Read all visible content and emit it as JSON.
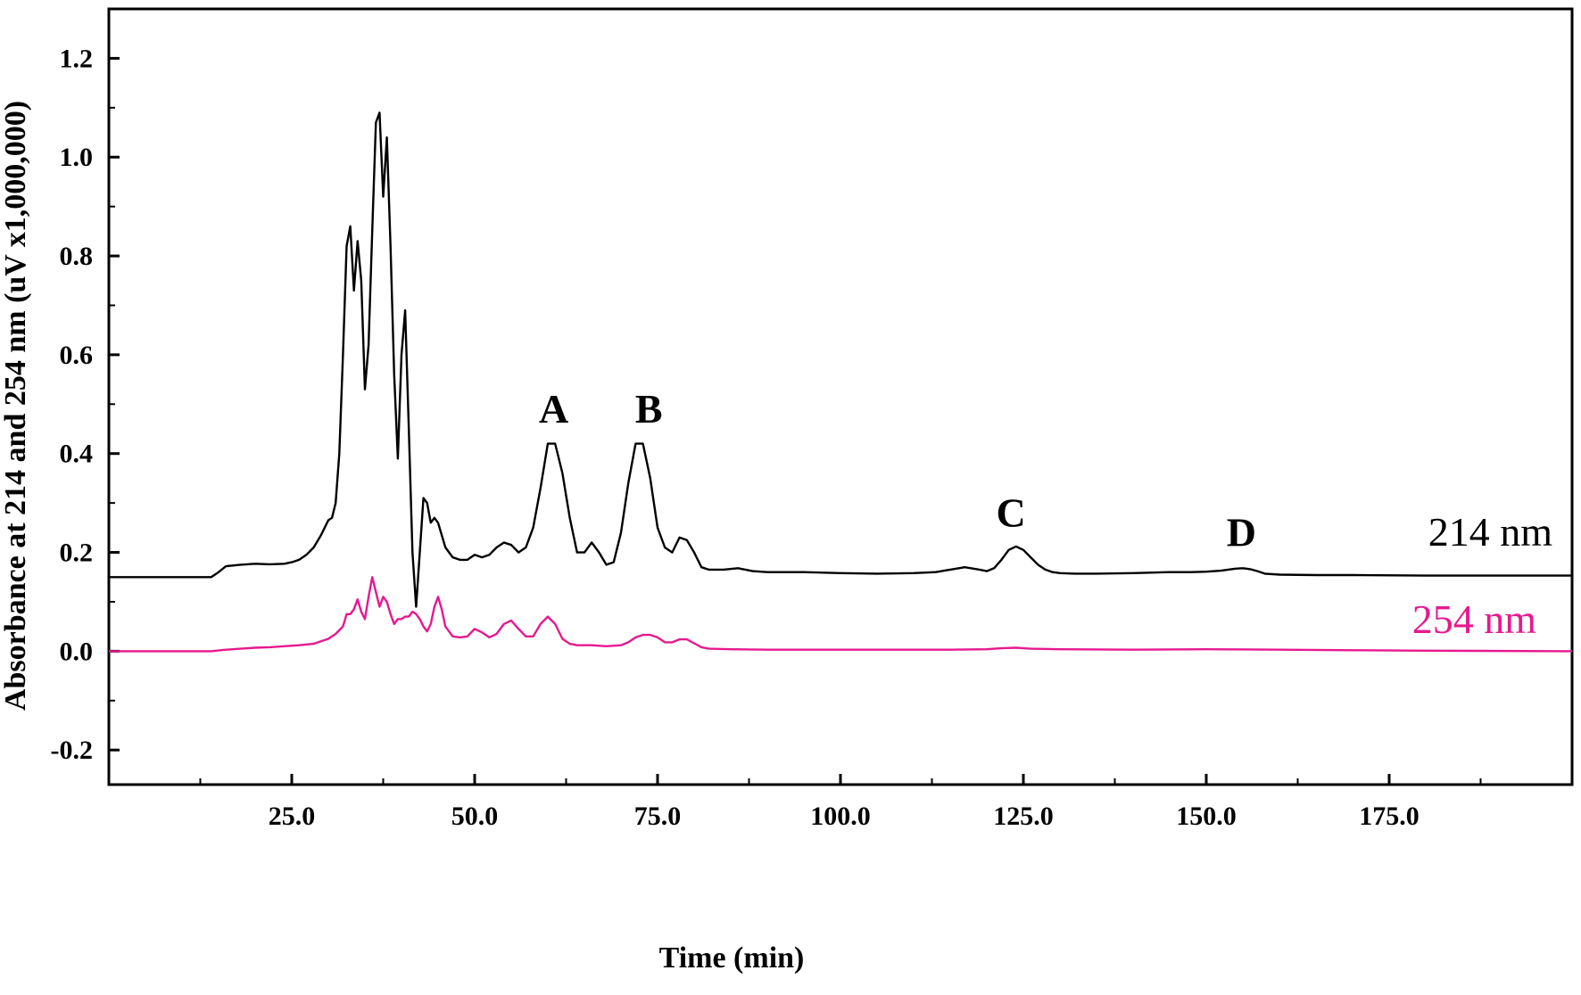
{
  "chart_data": {
    "type": "line",
    "title": "",
    "xlabel": "Time (min)",
    "ylabel": "Absorbance at 214 and 254 nm (uV x1,000,000)",
    "xlim": [
      0,
      200
    ],
    "ylim": [
      -0.27,
      1.3
    ],
    "x_ticks": [
      "25.0",
      "50.0",
      "75.0",
      "100.0",
      "125.0",
      "150.0",
      "175.0"
    ],
    "x_tick_values": [
      25,
      50,
      75,
      100,
      125,
      150,
      175
    ],
    "y_ticks": [
      "-0.2",
      "0.0",
      "0.2",
      "0.4",
      "0.6",
      "0.8",
      "1.0",
      "1.2"
    ],
    "y_tick_values": [
      -0.2,
      0.0,
      0.2,
      0.4,
      0.6,
      0.8,
      1.0,
      1.2
    ],
    "grid": false,
    "legend": "none",
    "series": [
      {
        "name": "214 nm",
        "color": "#000000",
        "x": [
          0,
          14,
          15,
          16,
          18,
          20,
          22,
          24,
          25,
          26,
          27,
          28,
          29,
          30,
          30.5,
          31,
          31.5,
          32,
          32.5,
          33,
          33.5,
          34,
          34.5,
          35,
          35.5,
          36,
          36.5,
          37,
          37.5,
          38,
          38.5,
          39,
          39.5,
          40,
          40.5,
          41,
          41.5,
          42,
          42.5,
          43,
          43.5,
          44,
          44.5,
          45,
          46,
          47,
          48,
          49,
          50,
          51,
          52,
          53,
          54,
          55,
          56,
          57,
          58,
          59,
          60,
          61,
          62,
          63,
          64,
          65,
          66,
          67,
          68,
          69,
          70,
          71,
          72,
          73,
          74,
          75,
          76,
          77,
          78,
          79,
          80,
          81,
          82,
          84,
          86,
          88,
          90,
          95,
          100,
          105,
          110,
          113,
          115,
          117,
          119,
          120,
          121,
          122,
          123,
          124,
          125,
          126,
          127,
          128,
          129,
          130,
          132,
          135,
          140,
          145,
          148,
          150,
          152,
          154,
          155,
          156,
          157,
          158,
          160,
          165,
          170,
          180,
          190,
          200
        ],
        "y": [
          0.15,
          0.15,
          0.16,
          0.172,
          0.175,
          0.177,
          0.176,
          0.177,
          0.18,
          0.185,
          0.195,
          0.21,
          0.235,
          0.265,
          0.27,
          0.3,
          0.4,
          0.6,
          0.82,
          0.86,
          0.73,
          0.83,
          0.75,
          0.53,
          0.62,
          0.85,
          1.07,
          1.09,
          0.92,
          1.04,
          0.82,
          0.56,
          0.39,
          0.6,
          0.69,
          0.45,
          0.2,
          0.09,
          0.2,
          0.31,
          0.3,
          0.26,
          0.27,
          0.26,
          0.21,
          0.19,
          0.185,
          0.185,
          0.195,
          0.19,
          0.195,
          0.21,
          0.22,
          0.215,
          0.2,
          0.21,
          0.25,
          0.33,
          0.42,
          0.42,
          0.36,
          0.27,
          0.2,
          0.2,
          0.22,
          0.2,
          0.175,
          0.18,
          0.24,
          0.34,
          0.42,
          0.42,
          0.35,
          0.25,
          0.21,
          0.2,
          0.23,
          0.225,
          0.2,
          0.17,
          0.165,
          0.165,
          0.168,
          0.162,
          0.16,
          0.16,
          0.158,
          0.157,
          0.158,
          0.16,
          0.165,
          0.17,
          0.165,
          0.162,
          0.168,
          0.185,
          0.205,
          0.212,
          0.205,
          0.19,
          0.175,
          0.165,
          0.16,
          0.158,
          0.157,
          0.157,
          0.158,
          0.16,
          0.16,
          0.161,
          0.163,
          0.167,
          0.168,
          0.166,
          0.162,
          0.157,
          0.155,
          0.154,
          0.154,
          0.153,
          0.153,
          0.153
        ]
      },
      {
        "name": "254 nm",
        "color": "#e6198f",
        "x": [
          0,
          14,
          16,
          18,
          20,
          22,
          24,
          26,
          28,
          29,
          30,
          31,
          32,
          32.5,
          33,
          33.5,
          34,
          34.5,
          35,
          35.5,
          36,
          36.5,
          37,
          37.5,
          38,
          38.5,
          39,
          39.5,
          40,
          40.5,
          41,
          41.5,
          42,
          42.5,
          43,
          43.5,
          44,
          44.5,
          45,
          45.5,
          46,
          47,
          48,
          49,
          50,
          51,
          52,
          53,
          54,
          55,
          56,
          57,
          58,
          59,
          60,
          61,
          62,
          63,
          64,
          66,
          68,
          70,
          71,
          72,
          73,
          74,
          75,
          76,
          77,
          78,
          79,
          80,
          81,
          82,
          85,
          90,
          100,
          110,
          115,
          120,
          122,
          124,
          126,
          130,
          140,
          150,
          160,
          170,
          180,
          200
        ],
        "y": [
          0.0,
          0.0,
          0.003,
          0.005,
          0.007,
          0.008,
          0.01,
          0.012,
          0.015,
          0.02,
          0.025,
          0.035,
          0.05,
          0.075,
          0.075,
          0.085,
          0.105,
          0.08,
          0.065,
          0.11,
          0.15,
          0.12,
          0.09,
          0.11,
          0.1,
          0.075,
          0.055,
          0.065,
          0.065,
          0.07,
          0.07,
          0.08,
          0.075,
          0.065,
          0.05,
          0.04,
          0.055,
          0.09,
          0.11,
          0.085,
          0.05,
          0.03,
          0.028,
          0.03,
          0.045,
          0.038,
          0.028,
          0.035,
          0.055,
          0.062,
          0.045,
          0.03,
          0.03,
          0.055,
          0.07,
          0.055,
          0.025,
          0.015,
          0.012,
          0.012,
          0.01,
          0.012,
          0.018,
          0.028,
          0.033,
          0.033,
          0.028,
          0.018,
          0.018,
          0.024,
          0.024,
          0.016,
          0.008,
          0.005,
          0.004,
          0.003,
          0.003,
          0.003,
          0.003,
          0.004,
          0.006,
          0.007,
          0.005,
          0.004,
          0.003,
          0.004,
          0.003,
          0.002,
          0.001,
          0.0
        ]
      }
    ],
    "annotations": [
      {
        "text": "A",
        "x": 60.8,
        "y": 0.43
      },
      {
        "text": "B",
        "x": 73.8,
        "y": 0.43
      },
      {
        "text": "C",
        "x": 123.3,
        "y": 0.22
      },
      {
        "text": "D",
        "x": 154.8,
        "y": 0.18
      }
    ],
    "series_labels": [
      {
        "text": "214 nm",
        "color": "#000000"
      },
      {
        "text": "254 nm",
        "color": "#e6198f"
      }
    ]
  }
}
